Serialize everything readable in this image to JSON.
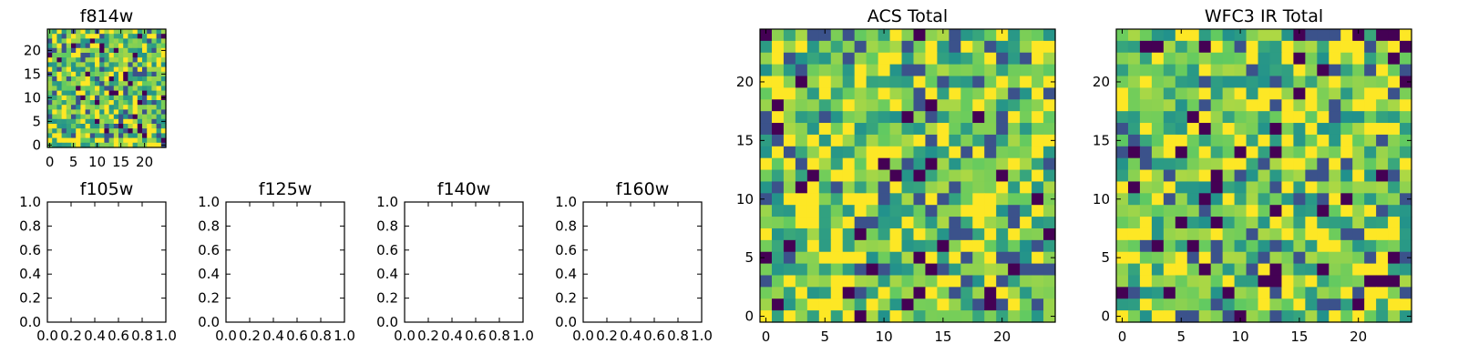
{
  "chart_data": [
    {
      "type": "heatmap",
      "title": "f814w",
      "xlabel": "",
      "ylabel": "",
      "xlim": [
        -0.5,
        24.5
      ],
      "ylim": [
        -0.5,
        24.5
      ],
      "xticks": [
        0,
        5,
        10,
        15,
        20
      ],
      "yticks": [
        0,
        5,
        10,
        15,
        20
      ],
      "grid_size": 25,
      "colormap": [
        "#440154",
        "#3b528b",
        "#21918c",
        "#5ec962",
        "#fde725"
      ],
      "seed": 814
    },
    {
      "type": "empty",
      "title": "f105w",
      "xlim": [
        0,
        1
      ],
      "ylim": [
        0,
        1
      ],
      "xticks": [
        "0.0",
        "0.2",
        "0.4",
        "0.6",
        "0.8",
        "1.0"
      ],
      "yticks": [
        "0.0",
        "0.2",
        "0.4",
        "0.6",
        "0.8",
        "1.0"
      ]
    },
    {
      "type": "empty",
      "title": "f125w",
      "xlim": [
        0,
        1
      ],
      "ylim": [
        0,
        1
      ],
      "xticks": [
        "0.0",
        "0.2",
        "0.4",
        "0.6",
        "0.8",
        "1.0"
      ],
      "yticks": [
        "0.0",
        "0.2",
        "0.4",
        "0.6",
        "0.8",
        "1.0"
      ]
    },
    {
      "type": "empty",
      "title": "f140w",
      "xlim": [
        0,
        1
      ],
      "ylim": [
        0,
        1
      ],
      "xticks": [
        "0.0",
        "0.2",
        "0.4",
        "0.6",
        "0.8",
        "1.0"
      ],
      "yticks": [
        "0.0",
        "0.2",
        "0.4",
        "0.6",
        "0.8",
        "1.0"
      ]
    },
    {
      "type": "empty",
      "title": "f160w",
      "xlim": [
        0,
        1
      ],
      "ylim": [
        0,
        1
      ],
      "xticks": [
        "0.0",
        "0.2",
        "0.4",
        "0.6",
        "0.8",
        "1.0"
      ],
      "yticks": [
        "0.0",
        "0.2",
        "0.4",
        "0.6",
        "0.8",
        "1.0"
      ]
    },
    {
      "type": "heatmap",
      "title": "ACS Total",
      "xlim": [
        -0.5,
        24.5
      ],
      "ylim": [
        -0.5,
        24.5
      ],
      "xticks": [
        0,
        5,
        10,
        15,
        20
      ],
      "yticks": [
        0,
        5,
        10,
        15,
        20
      ],
      "grid_size": 25,
      "colormap": [
        "#440154",
        "#3b528b",
        "#21918c",
        "#5ec962",
        "#fde725"
      ],
      "seed": 2024
    },
    {
      "type": "heatmap",
      "title": "WFC3 IR Total",
      "xlim": [
        -0.5,
        24.5
      ],
      "ylim": [
        -0.5,
        24.5
      ],
      "xticks": [
        0,
        5,
        10,
        15,
        20
      ],
      "yticks": [
        0,
        5,
        10,
        15,
        20
      ],
      "grid_size": 25,
      "colormap": [
        "#440154",
        "#3b528b",
        "#21918c",
        "#5ec962",
        "#fde725"
      ],
      "seed": 3141
    }
  ]
}
